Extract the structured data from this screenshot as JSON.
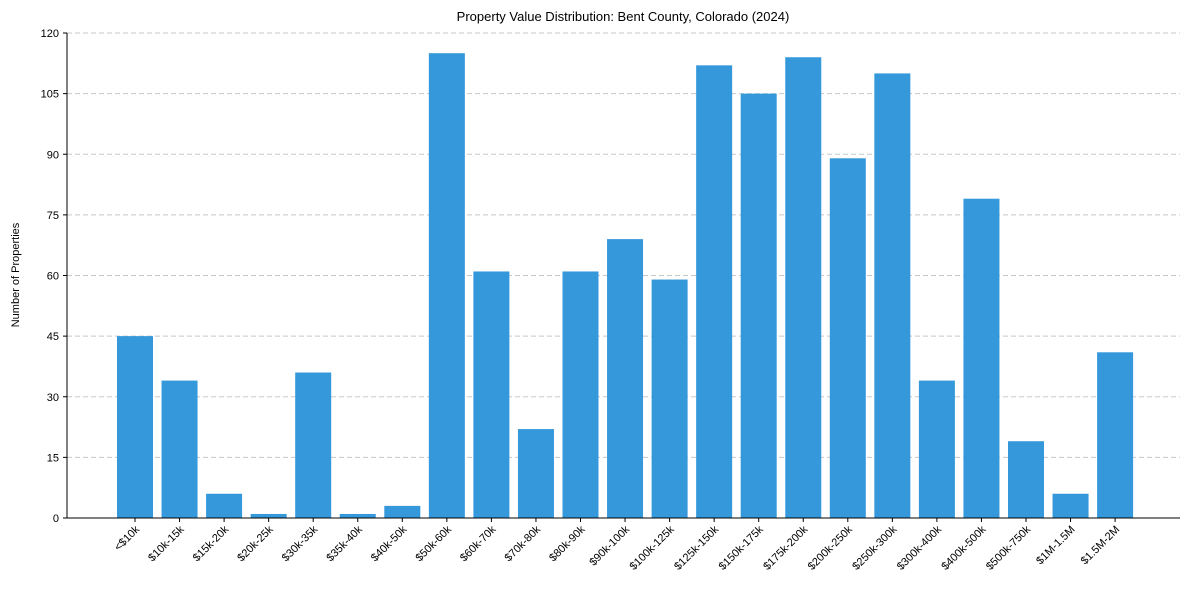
{
  "chart_data": {
    "type": "bar",
    "title": "Property Value Distribution: Bent County, Colorado (2024)",
    "xlabel": "",
    "ylabel": "Number of Properties",
    "ylim": [
      0,
      120
    ],
    "yticks": [
      0,
      15,
      30,
      45,
      60,
      75,
      90,
      105,
      120
    ],
    "grid": "y-dashed",
    "bar_color": "#3498db",
    "categories": [
      "<$10k",
      "$10k-15k",
      "$15k-20k",
      "$20k-25k",
      "$30k-35k",
      "$35k-40k",
      "$40k-50k",
      "$50k-60k",
      "$60k-70k",
      "$70k-80k",
      "$80k-90k",
      "$90k-100k",
      "$100k-125k",
      "$125k-150k",
      "$150k-175k",
      "$175k-200k",
      "$200k-250k",
      "$250k-300k",
      "$300k-400k",
      "$400k-500k",
      "$500k-750k",
      "$1M-1.5M",
      "$1.5M-2M"
    ],
    "values": [
      45,
      34,
      6,
      1,
      36,
      1,
      3,
      115,
      61,
      22,
      61,
      69,
      59,
      112,
      105,
      114,
      89,
      110,
      34,
      79,
      19,
      6,
      41
    ]
  }
}
